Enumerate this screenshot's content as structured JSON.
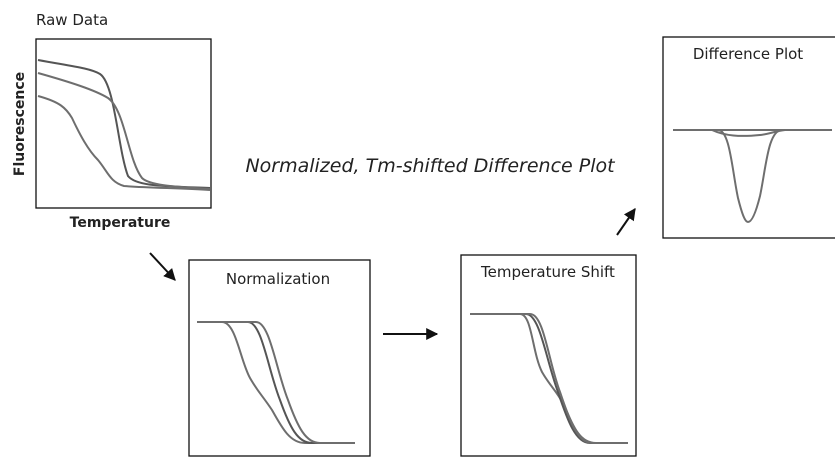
{
  "raw_data": {
    "title": "Raw Data",
    "y_label": "Fluorescence",
    "x_label": "Temperature"
  },
  "caption": "Normalized, Tm-shifted Difference Plot",
  "normalization": {
    "title": "Normalization"
  },
  "temperature_shift": {
    "title": "Temperature Shift"
  },
  "difference_plot": {
    "title": "Difference Plot"
  }
}
